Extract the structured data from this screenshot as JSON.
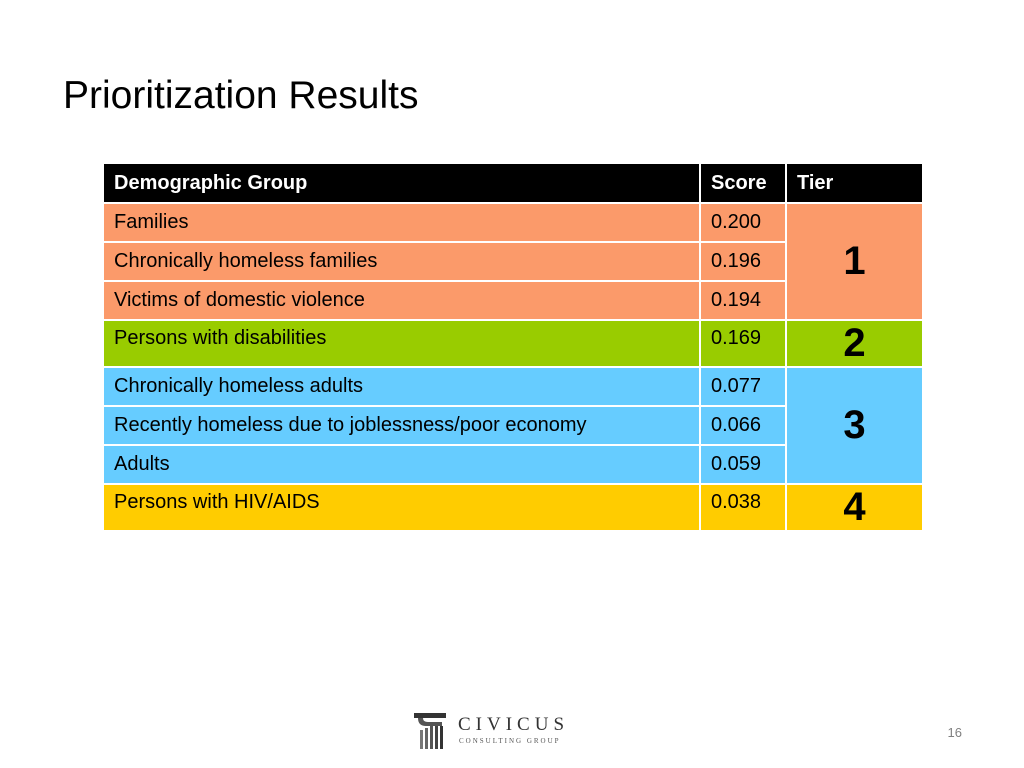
{
  "slide": {
    "title": "Prioritization Results",
    "page_number": "16"
  },
  "table": {
    "headers": {
      "group": "Demographic Group",
      "score": "Score",
      "tier": "Tier"
    },
    "rows": [
      {
        "group": "Families",
        "score": "0.200"
      },
      {
        "group": "Chronically homeless families",
        "score": "0.196"
      },
      {
        "group": "Victims of domestic violence",
        "score": "0.194"
      },
      {
        "group": "Persons with disabilities",
        "score": "0.169"
      },
      {
        "group": "Chronically homeless adults",
        "score": "0.077"
      },
      {
        "group": "Recently homeless due to joblessness/poor economy",
        "score": "0.066"
      },
      {
        "group": "Adults",
        "score": "0.059"
      },
      {
        "group": "Persons with HIV/AIDS",
        "score": "0.038"
      }
    ],
    "tiers": [
      "1",
      "2",
      "3",
      "4"
    ],
    "tier_colors": {
      "tier1": "#fb9a6a",
      "tier2": "#99cc00",
      "tier3": "#66ccff",
      "tier4": "#ffcc00",
      "header": "#000000"
    }
  },
  "footer": {
    "logo_name": "CIVICUS",
    "logo_sub": "CONSULTING GROUP",
    "logo_icon": "column-capital-icon"
  }
}
